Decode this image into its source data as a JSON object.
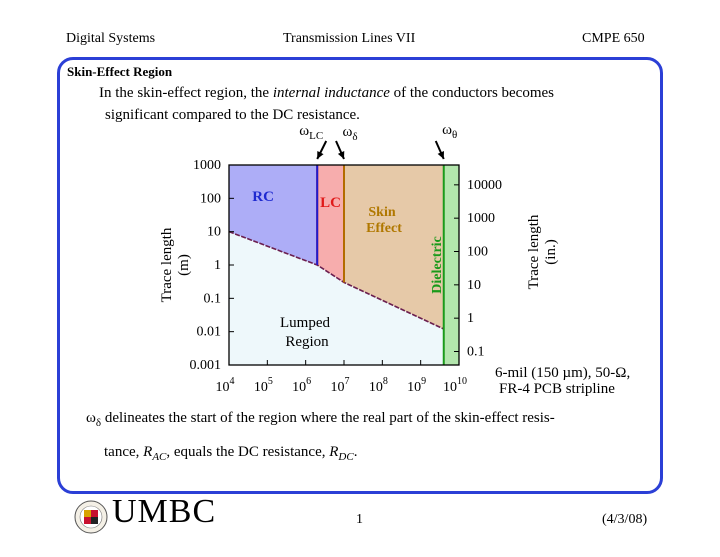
{
  "header": {
    "left": "Digital Systems",
    "center": "Transmission Lines VII",
    "right": "CMPE 650"
  },
  "section_title": "Skin-Effect Region",
  "intro": {
    "before": "In the skin-effect region, the ",
    "emph": "internal inductance",
    "after": " of the conductors becomes",
    "line2": "significant compared to the DC resistance."
  },
  "chart_data": {
    "type": "area",
    "x_scale": "log",
    "y_scale": "log",
    "x_ticks": [
      {
        "base": "10",
        "exp": "4"
      },
      {
        "base": "10",
        "exp": "5"
      },
      {
        "base": "10",
        "exp": "6"
      },
      {
        "base": "10",
        "exp": "7"
      },
      {
        "base": "10",
        "exp": "8"
      },
      {
        "base": "10",
        "exp": "9"
      },
      {
        "base": "10",
        "exp": "10"
      }
    ],
    "xlim": [
      10000,
      10000000000
    ],
    "left_axis": {
      "label": "Trace length (m)",
      "label_line1": "Trace length",
      "label_line2": "(m)",
      "ticks": [
        "1000",
        "100",
        "10",
        "1",
        "0.1",
        "0.01",
        "0.001"
      ],
      "ylim": [
        0.001,
        1000
      ]
    },
    "right_axis": {
      "label": "Trace length (in.)",
      "label_line1": "Trace length",
      "label_line2": "(in.)",
      "ticks": [
        "10000",
        "1000",
        "100",
        "10",
        "1",
        "0.1"
      ]
    },
    "boundary": [
      {
        "f": 10000,
        "len": 10
      },
      {
        "f": 2000000,
        "len": 1
      },
      {
        "f": 10000000,
        "len": 0.3
      },
      {
        "f": 4000000000,
        "len": 0.012
      }
    ],
    "frequencies": {
      "omega_LC": 2000000,
      "omega_delta": 10000000,
      "omega_theta": 4000000000
    },
    "regions": [
      {
        "name": "RC",
        "from": 10000,
        "to": 2000000,
        "fill": "#adadf7",
        "edge": "#1c1ccf",
        "text_color": "#1f2ad0"
      },
      {
        "name": "LC",
        "from": 2000000,
        "to": 10000000,
        "fill": "#f7adad",
        "edge": "#e01a1a",
        "text_color": "#e01a1a"
      },
      {
        "name": "Skin Effect",
        "line1": "Skin",
        "line2": "Effect",
        "from": 10000000,
        "to": 4000000000,
        "fill": "#e6c9a8",
        "edge": "#b36b00",
        "text_color": "#b07800"
      },
      {
        "name": "Dielectric",
        "from": 4000000000,
        "to": 10000000000,
        "fill": "#b3e6ad",
        "edge": "#1a9a1a",
        "text_color": "#1a9a1a"
      }
    ],
    "lumped": {
      "name": "Lumped Region",
      "line1": "Lumped",
      "line2": "Region",
      "fill": "#eef8fb"
    },
    "markers": [
      {
        "sym": "ω",
        "sub": "LC",
        "f": 2000000
      },
      {
        "sym": "ω",
        "sub": "δ",
        "f": 10000000
      },
      {
        "sym": "ω",
        "sub": "θ",
        "f": 4000000000
      }
    ],
    "annotation": {
      "line1": "6-mil (150 µm), 50-Ω,",
      "line2": "FR-4 PCB stripline"
    }
  },
  "note": {
    "sym": "ω",
    "sub": "δ",
    "text1": " delineates the start of the region where the real part of the skin-effect resis-",
    "text2a": "tance, ",
    "rac": "R",
    "rac_sub": "AC",
    "text2b": ", equals the DC resistance, ",
    "rdc": "R",
    "rdc_sub": "DC",
    "text2c": "."
  },
  "footer": {
    "logo_text": "UMBC",
    "page": "1",
    "date": "(4/3/08)"
  }
}
